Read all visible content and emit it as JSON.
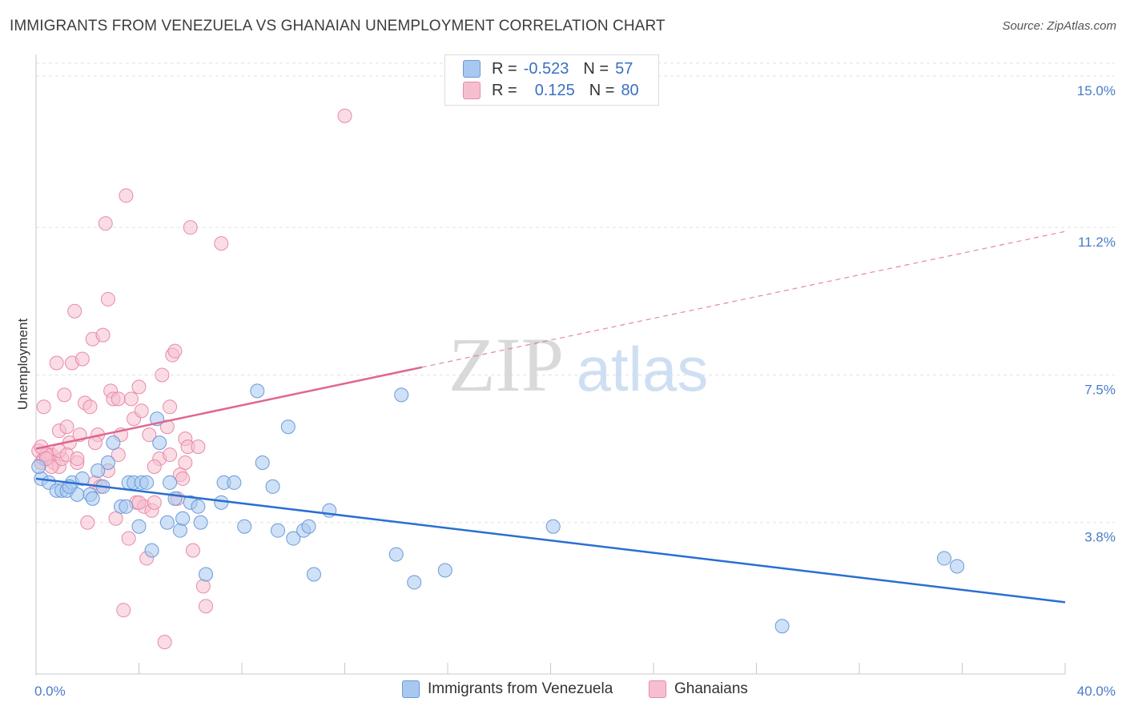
{
  "title": "IMMIGRANTS FROM VENEZUELA VS GHANAIAN UNEMPLOYMENT CORRELATION CHART",
  "source": "Source: ZipAtlas.com",
  "watermark": {
    "zip": "ZIP",
    "atlas": "atlas"
  },
  "legend": {
    "rows": [
      {
        "r_label": "R =",
        "r_value": "-0.523",
        "n_label": "N =",
        "n_value": "57",
        "color": "#a8c8f0",
        "border": "#6a9ad8"
      },
      {
        "r_label": "R =",
        "r_value": "0.125",
        "n_label": "N =",
        "n_value": "80",
        "color": "#f6bfd0",
        "border": "#e88aa8"
      }
    ]
  },
  "colors": {
    "blue_fill": "#a8c8f0",
    "blue_stroke": "#6a9ad8",
    "blue_line": "#2a6fd0",
    "pink_fill": "#f6bfd0",
    "pink_stroke": "#e88aa8",
    "pink_line": "#e0668f",
    "grid": "#e2e2e2",
    "tick_text": "#4a7cc7"
  },
  "chart_data": {
    "type": "scatter",
    "title": "IMMIGRANTS FROM VENEZUELA VS GHANAIAN UNEMPLOYMENT CORRELATION CHART",
    "xlabel": "",
    "ylabel": "Unemployment",
    "xlim": [
      0,
      40
    ],
    "ylim": [
      0,
      15.5
    ],
    "x_tick_labels": [
      "0.0%",
      "40.0%"
    ],
    "y_tick_labels": [
      "3.8%",
      "7.5%",
      "11.2%",
      "15.0%"
    ],
    "y_ticks": [
      3.8,
      7.5,
      11.2,
      15.0
    ],
    "grid": true,
    "legend_position": "bottom",
    "series": [
      {
        "name": "Immigrants from Venezuela",
        "color": "#a8c8f0",
        "trend": {
          "x": [
            0,
            40
          ],
          "y": [
            4.9,
            1.8
          ],
          "dashed_from": null
        },
        "points": [
          [
            0.2,
            4.9
          ],
          [
            0.5,
            4.8
          ],
          [
            0.8,
            4.6
          ],
          [
            1.0,
            4.6
          ],
          [
            1.2,
            4.6
          ],
          [
            1.4,
            4.8
          ],
          [
            1.6,
            4.5
          ],
          [
            1.8,
            4.9
          ],
          [
            2.1,
            4.5
          ],
          [
            2.2,
            4.4
          ],
          [
            2.4,
            5.1
          ],
          [
            2.6,
            4.7
          ],
          [
            2.8,
            5.3
          ],
          [
            3.0,
            5.8
          ],
          [
            3.3,
            4.2
          ],
          [
            3.5,
            4.2
          ],
          [
            3.6,
            4.8
          ],
          [
            3.8,
            4.8
          ],
          [
            4.0,
            3.7
          ],
          [
            4.1,
            4.8
          ],
          [
            4.3,
            4.8
          ],
          [
            4.5,
            3.1
          ],
          [
            4.7,
            6.4
          ],
          [
            4.8,
            5.8
          ],
          [
            5.1,
            3.8
          ],
          [
            5.2,
            4.8
          ],
          [
            5.4,
            4.4
          ],
          [
            5.6,
            3.6
          ],
          [
            5.7,
            3.9
          ],
          [
            6.0,
            4.3
          ],
          [
            6.3,
            4.2
          ],
          [
            6.4,
            3.8
          ],
          [
            6.6,
            2.5
          ],
          [
            7.2,
            4.3
          ],
          [
            7.3,
            4.8
          ],
          [
            7.7,
            4.8
          ],
          [
            8.1,
            3.7
          ],
          [
            8.6,
            7.1
          ],
          [
            8.8,
            5.3
          ],
          [
            9.2,
            4.7
          ],
          [
            9.4,
            3.6
          ],
          [
            9.8,
            6.2
          ],
          [
            10.0,
            3.4
          ],
          [
            10.4,
            3.6
          ],
          [
            10.6,
            3.7
          ],
          [
            10.8,
            2.5
          ],
          [
            11.4,
            4.1
          ],
          [
            14.0,
            3.0
          ],
          [
            14.2,
            7.0
          ],
          [
            14.7,
            2.3
          ],
          [
            15.9,
            2.6
          ],
          [
            20.1,
            3.7
          ],
          [
            29.0,
            1.2
          ],
          [
            35.3,
            2.9
          ],
          [
            35.8,
            2.7
          ],
          [
            0.1,
            5.2
          ],
          [
            1.3,
            4.7
          ]
        ]
      },
      {
        "name": "Ghanaians",
        "color": "#f6bfd0",
        "trend": {
          "x": [
            0,
            40
          ],
          "y": [
            5.65,
            11.1
          ],
          "dashed_from": 15.0
        },
        "points": [
          [
            0.1,
            5.6
          ],
          [
            0.2,
            5.3
          ],
          [
            0.3,
            6.7
          ],
          [
            0.3,
            5.4
          ],
          [
            0.5,
            5.5
          ],
          [
            0.6,
            5.5
          ],
          [
            0.7,
            5.3
          ],
          [
            0.8,
            7.8
          ],
          [
            0.9,
            6.1
          ],
          [
            0.9,
            5.2
          ],
          [
            1.0,
            5.4
          ],
          [
            1.1,
            7.0
          ],
          [
            1.2,
            6.2
          ],
          [
            1.3,
            5.8
          ],
          [
            1.4,
            7.8
          ],
          [
            1.5,
            9.1
          ],
          [
            1.6,
            5.3
          ],
          [
            1.7,
            6.0
          ],
          [
            1.8,
            7.9
          ],
          [
            1.9,
            6.8
          ],
          [
            2.0,
            3.8
          ],
          [
            2.1,
            6.7
          ],
          [
            2.2,
            8.4
          ],
          [
            2.3,
            4.8
          ],
          [
            2.4,
            6.0
          ],
          [
            2.5,
            4.7
          ],
          [
            2.6,
            8.5
          ],
          [
            2.7,
            11.3
          ],
          [
            2.8,
            9.4
          ],
          [
            2.9,
            7.1
          ],
          [
            3.0,
            6.9
          ],
          [
            3.1,
            3.9
          ],
          [
            3.2,
            6.9
          ],
          [
            3.3,
            6.0
          ],
          [
            3.4,
            1.6
          ],
          [
            3.5,
            12.0
          ],
          [
            3.6,
            3.4
          ],
          [
            3.7,
            6.9
          ],
          [
            3.8,
            6.4
          ],
          [
            3.9,
            4.3
          ],
          [
            4.0,
            7.2
          ],
          [
            4.1,
            6.6
          ],
          [
            4.2,
            4.2
          ],
          [
            4.3,
            2.9
          ],
          [
            4.4,
            6.0
          ],
          [
            4.5,
            4.1
          ],
          [
            4.6,
            4.3
          ],
          [
            4.8,
            5.4
          ],
          [
            4.9,
            7.5
          ],
          [
            5.0,
            0.8
          ],
          [
            5.1,
            6.2
          ],
          [
            5.2,
            6.7
          ],
          [
            5.3,
            8.0
          ],
          [
            5.4,
            8.1
          ],
          [
            5.5,
            4.4
          ],
          [
            5.6,
            5.0
          ],
          [
            5.7,
            4.9
          ],
          [
            5.8,
            5.9
          ],
          [
            5.9,
            5.7
          ],
          [
            6.0,
            11.2
          ],
          [
            6.1,
            3.1
          ],
          [
            6.3,
            5.7
          ],
          [
            6.5,
            2.2
          ],
          [
            6.6,
            1.7
          ],
          [
            7.2,
            10.8
          ],
          [
            12.0,
            14.0
          ],
          [
            0.4,
            5.5
          ],
          [
            0.6,
            5.2
          ],
          [
            0.9,
            5.6
          ],
          [
            1.2,
            5.5
          ],
          [
            1.6,
            5.4
          ],
          [
            2.3,
            5.8
          ],
          [
            2.8,
            5.1
          ],
          [
            3.2,
            5.5
          ],
          [
            4.0,
            4.3
          ],
          [
            4.6,
            5.2
          ],
          [
            5.2,
            5.5
          ],
          [
            5.8,
            5.3
          ],
          [
            0.2,
            5.7
          ],
          [
            0.4,
            5.4
          ]
        ]
      }
    ]
  }
}
